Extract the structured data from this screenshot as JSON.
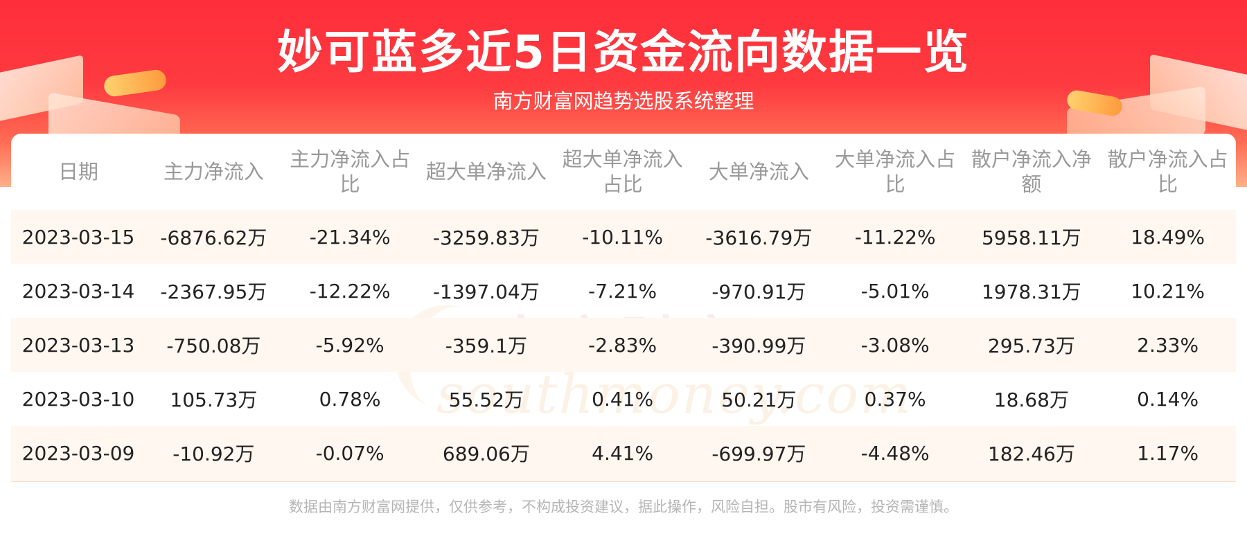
{
  "header": {
    "title": "妙可蓝多近5日资金流向数据一览",
    "subtitle": "南方财富网趋势选股系统整理"
  },
  "watermark": {
    "cn": "南方财富网",
    "en": "southmoney.com"
  },
  "table": {
    "columns": [
      "日期",
      "主力净流入",
      "主力净流入占比",
      "超大单净流入",
      "超大单净流入占比",
      "大单净流入",
      "大单净流入占比",
      "散户净流入净额",
      "散户净流入占比"
    ],
    "rows": [
      [
        "2023-03-15",
        "-6876.62万",
        "-21.34%",
        "-3259.83万",
        "-10.11%",
        "-3616.79万",
        "-11.22%",
        "5958.11万",
        "18.49%"
      ],
      [
        "2023-03-14",
        "-2367.95万",
        "-12.22%",
        "-1397.04万",
        "-7.21%",
        "-970.91万",
        "-5.01%",
        "1978.31万",
        "10.21%"
      ],
      [
        "2023-03-13",
        "-750.08万",
        "-5.92%",
        "-359.1万",
        "-2.83%",
        "-390.99万",
        "-3.08%",
        "295.73万",
        "2.33%"
      ],
      [
        "2023-03-10",
        "105.73万",
        "0.78%",
        "55.52万",
        "0.41%",
        "50.21万",
        "0.37%",
        "18.68万",
        "0.14%"
      ],
      [
        "2023-03-09",
        "-10.92万",
        "-0.07%",
        "689.06万",
        "4.41%",
        "-699.97万",
        "-4.48%",
        "182.46万",
        "1.17%"
      ]
    ]
  },
  "footer": {
    "disclaimer": "数据由南方财富网提供，仅供参考，不构成投资建议，据此操作，风险自担。股市有风险，投资需谨慎。"
  },
  "colors": {
    "banner_red": "#fe2e3a",
    "stripe": "#fff7f0",
    "header_text": "#999999",
    "cell_text": "#222222"
  }
}
